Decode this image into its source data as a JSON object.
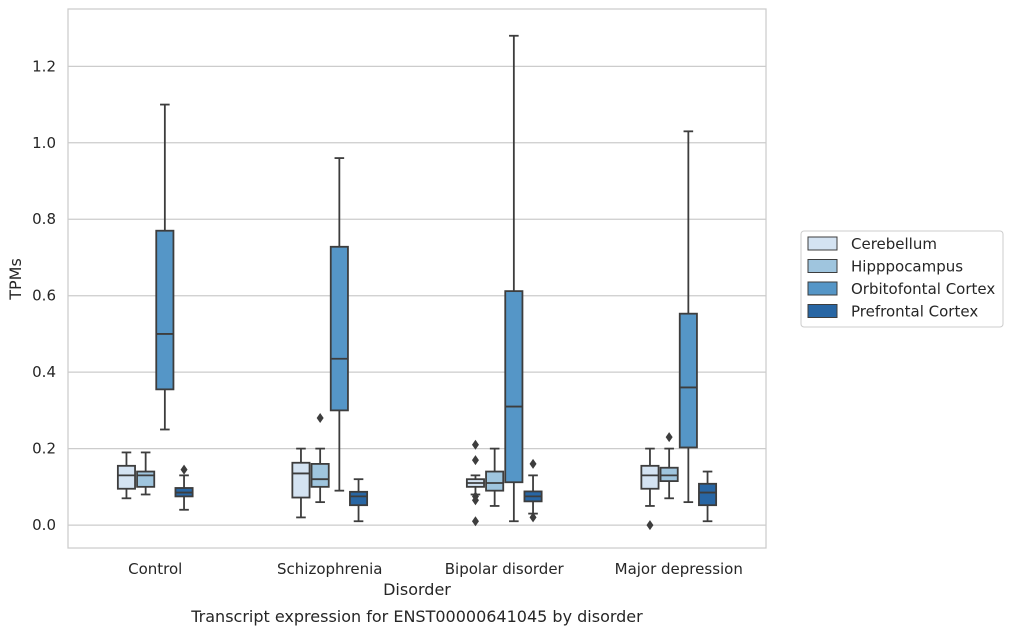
{
  "caption": "Transcript expression for ENST00000641045 by disorder",
  "chart_data": {
    "type": "boxplot",
    "xlabel": "Disorder",
    "ylabel": "TPMs",
    "ylim": [
      -0.06,
      1.35
    ],
    "yticks": [
      0.0,
      0.2,
      0.4,
      0.6,
      0.8,
      1.0,
      1.2
    ],
    "ytick_labels": [
      "0.0",
      "0.2",
      "0.4",
      "0.6",
      "0.8",
      "1.0",
      "1.2"
    ],
    "grid": "horizontal",
    "legend_position": "right",
    "categories": [
      "Control",
      "Schizophrenia",
      "Bipolar disorder",
      "Major depression"
    ],
    "series": [
      {
        "name": "Cerebellum",
        "color": "#d4e3f2",
        "boxes": [
          {
            "whislo": 0.07,
            "q1": 0.095,
            "med": 0.13,
            "q3": 0.155,
            "whishi": 0.19,
            "fliers": []
          },
          {
            "whislo": 0.02,
            "q1": 0.072,
            "med": 0.135,
            "q3": 0.163,
            "whishi": 0.2,
            "fliers": []
          },
          {
            "whislo": 0.08,
            "q1": 0.1,
            "med": 0.11,
            "q3": 0.12,
            "whishi": 0.13,
            "fliers": [
              0.21,
              0.17,
              0.075,
              0.065,
              0.01
            ]
          },
          {
            "whislo": 0.05,
            "q1": 0.095,
            "med": 0.13,
            "q3": 0.155,
            "whishi": 0.2,
            "fliers": [
              0.0
            ]
          }
        ]
      },
      {
        "name": "Hipppocampus",
        "color": "#9fc5de",
        "boxes": [
          {
            "whislo": 0.08,
            "q1": 0.1,
            "med": 0.13,
            "q3": 0.14,
            "whishi": 0.19,
            "fliers": []
          },
          {
            "whislo": 0.06,
            "q1": 0.1,
            "med": 0.12,
            "q3": 0.16,
            "whishi": 0.2,
            "fliers": [
              0.28
            ]
          },
          {
            "whislo": 0.05,
            "q1": 0.09,
            "med": 0.11,
            "q3": 0.14,
            "whishi": 0.2,
            "fliers": []
          },
          {
            "whislo": 0.07,
            "q1": 0.115,
            "med": 0.13,
            "q3": 0.15,
            "whishi": 0.2,
            "fliers": [
              0.23
            ]
          }
        ]
      },
      {
        "name": "Orbitofontal Cortex",
        "color": "#5596c7",
        "boxes": [
          {
            "whislo": 0.25,
            "q1": 0.355,
            "med": 0.5,
            "q3": 0.77,
            "whishi": 1.1,
            "fliers": []
          },
          {
            "whislo": 0.09,
            "q1": 0.3,
            "med": 0.435,
            "q3": 0.728,
            "whishi": 0.96,
            "fliers": []
          },
          {
            "whislo": 0.01,
            "q1": 0.112,
            "med": 0.31,
            "q3": 0.612,
            "whishi": 1.28,
            "fliers": []
          },
          {
            "whislo": 0.06,
            "q1": 0.203,
            "med": 0.36,
            "q3": 0.553,
            "whishi": 1.03,
            "fliers": []
          }
        ]
      },
      {
        "name": "Prefrontal Cortex",
        "color": "#2866a4",
        "boxes": [
          {
            "whislo": 0.04,
            "q1": 0.075,
            "med": 0.085,
            "q3": 0.097,
            "whishi": 0.13,
            "fliers": [
              0.145
            ]
          },
          {
            "whislo": 0.01,
            "q1": 0.052,
            "med": 0.075,
            "q3": 0.087,
            "whishi": 0.12,
            "fliers": []
          },
          {
            "whislo": 0.03,
            "q1": 0.062,
            "med": 0.075,
            "q3": 0.088,
            "whishi": 0.13,
            "fliers": [
              0.16,
              0.02
            ]
          },
          {
            "whislo": 0.01,
            "q1": 0.052,
            "med": 0.085,
            "q3": 0.108,
            "whishi": 0.14,
            "fliers": []
          }
        ]
      }
    ]
  }
}
